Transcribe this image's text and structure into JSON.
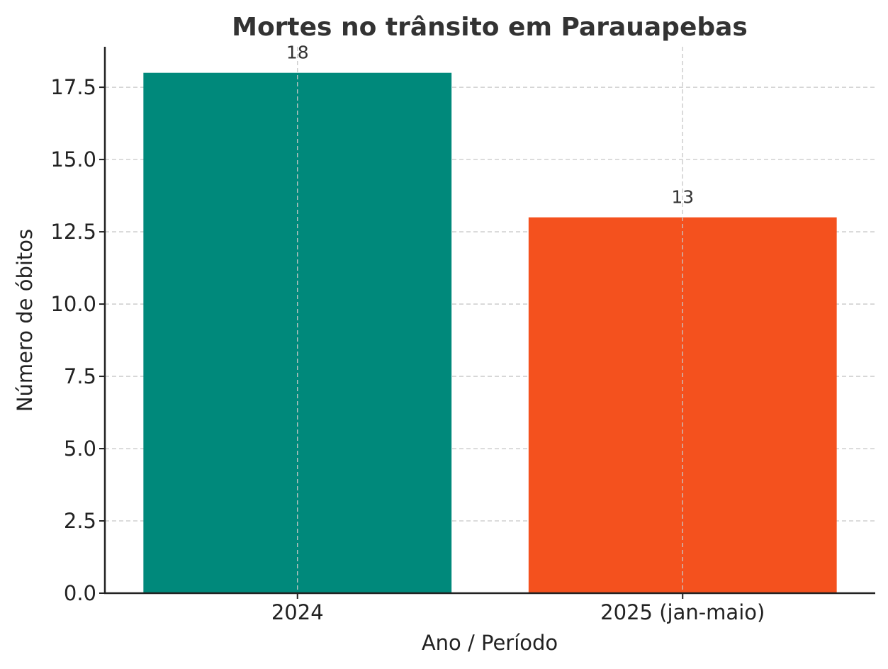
{
  "chart_data": {
    "type": "bar",
    "title": "Mortes no trânsito em Parauapebas",
    "xlabel": "Ano / Período",
    "ylabel": "Número de óbitos",
    "categories": [
      "2024",
      "2025 (jan-maio)"
    ],
    "values": [
      18,
      13
    ],
    "data_labels": [
      "18",
      "13"
    ],
    "colors": [
      "#00897b",
      "#f4511e"
    ],
    "ylim": [
      0,
      18.9
    ],
    "yticks": [
      0.0,
      2.5,
      5.0,
      7.5,
      10.0,
      12.5,
      15.0,
      17.5
    ],
    "ytick_labels": [
      "0.0",
      "2.5",
      "5.0",
      "7.5",
      "10.0",
      "12.5",
      "15.0",
      "17.5"
    ],
    "grid": true
  }
}
